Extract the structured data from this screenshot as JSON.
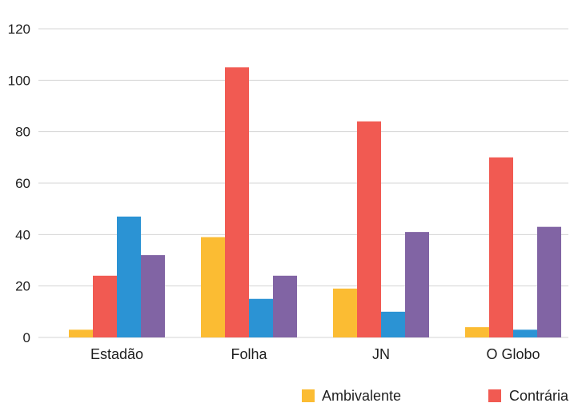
{
  "chart_data": {
    "type": "bar",
    "title": "",
    "xlabel": "",
    "ylabel": "",
    "categories": [
      "Estadão",
      "Folha",
      "JN",
      "O Globo"
    ],
    "series": [
      {
        "name": "Ambivalente",
        "color": "#FBBC33",
        "values": [
          3,
          39,
          19,
          4
        ]
      },
      {
        "name": "Contrária",
        "color": "#F15A52",
        "values": [
          24,
          105,
          84,
          70
        ]
      },
      {
        "color": "#2B93D4",
        "values": [
          47,
          15,
          10,
          3
        ]
      },
      {
        "color": "#8164A4",
        "values": [
          32,
          24,
          41,
          43
        ]
      }
    ],
    "ylim": [
      0,
      120
    ],
    "yticks": [
      0,
      20,
      40,
      60,
      80,
      100,
      120
    ],
    "grid": true,
    "legend_position": "bottom"
  }
}
